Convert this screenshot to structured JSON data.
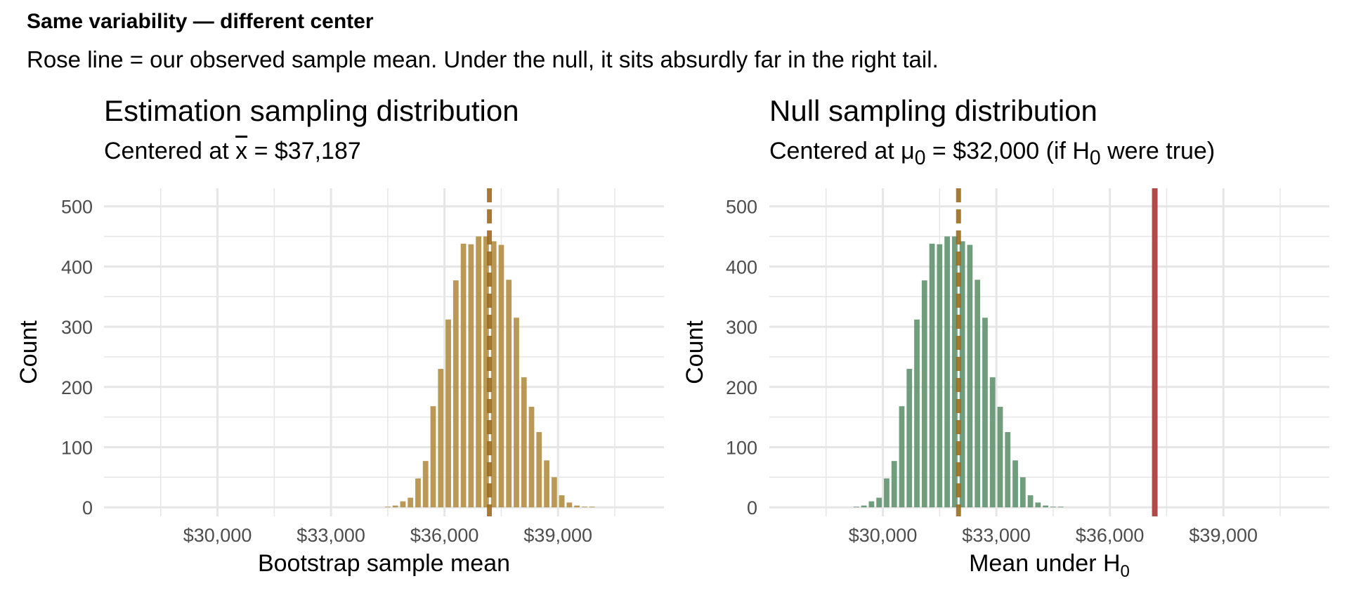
{
  "figure": {
    "title": "Same variability — different center",
    "subtitle": "Rose line = our observed sample mean. Under the null, it sits absurdly far in the right tail."
  },
  "colors": {
    "gold": "#b08a3e",
    "green": "#5c8f6a",
    "dashed_line": "#9a6b1f",
    "rose": "#b34a4a",
    "grid": "#e6e6e6"
  },
  "panels": [
    {
      "title": "Estimation sampling distribution",
      "subtitle_lead": "Centered at ",
      "subtitle_symbol": "x",
      "subtitle_rest": " = $37,187"
    },
    {
      "title": "Null sampling distribution",
      "subtitle_lead": "Centered at ",
      "subtitle_symbol": "μ",
      "subtitle_sub": "0",
      "subtitle_mid": " = $32,000 (if H",
      "subtitle_sub2": "0",
      "subtitle_rest": " were true)"
    }
  ],
  "chart_data": [
    {
      "type": "bar",
      "subtype": "histogram",
      "title": "Estimation sampling distribution",
      "xlabel": "Bootstrap sample mean",
      "ylabel": "Count",
      "xlim": [
        27000,
        41800
      ],
      "ylim": [
        -15,
        530
      ],
      "xticks": [
        30000,
        33000,
        36000,
        39000
      ],
      "xtick_labels": [
        "$30,000",
        "$33,000",
        "$36,000",
        "$39,000"
      ],
      "yticks": [
        0,
        100,
        200,
        300,
        400,
        500
      ],
      "bin_width": 200,
      "bin_centers": [
        34500,
        34700,
        34900,
        35100,
        35300,
        35500,
        35700,
        35900,
        36100,
        36300,
        36500,
        36700,
        36900,
        37100,
        37300,
        37500,
        37700,
        37900,
        38100,
        38300,
        38500,
        38700,
        38900,
        39100,
        39300,
        39500,
        39700,
        39900
      ],
      "counts": [
        1,
        3,
        10,
        16,
        48,
        77,
        168,
        230,
        312,
        377,
        438,
        437,
        450,
        450,
        442,
        436,
        378,
        315,
        216,
        167,
        125,
        78,
        50,
        20,
        8,
        3,
        1,
        1
      ],
      "color": "gold",
      "vlines": [
        {
          "x": 37187,
          "style": "dashed",
          "color": "dashed_line"
        }
      ],
      "grid": true
    },
    {
      "type": "bar",
      "subtype": "histogram",
      "title": "Null sampling distribution",
      "xlabel": "Mean under H0",
      "xlabel_lead": "Mean under ",
      "xlabel_h": "H",
      "xlabel_sub": "0",
      "ylabel": "Count",
      "xlim": [
        27000,
        41800
      ],
      "ylim": [
        -15,
        530
      ],
      "xticks": [
        30000,
        33000,
        36000,
        39000
      ],
      "xtick_labels": [
        "$30,000",
        "$33,000",
        "$36,000",
        "$39,000"
      ],
      "yticks": [
        0,
        100,
        200,
        300,
        400,
        500
      ],
      "bin_width": 200,
      "bin_centers": [
        29300,
        29500,
        29700,
        29900,
        30100,
        30300,
        30500,
        30700,
        30900,
        31100,
        31300,
        31500,
        31700,
        31900,
        32100,
        32300,
        32500,
        32700,
        32900,
        33100,
        33300,
        33500,
        33700,
        33900,
        34100,
        34300,
        34500,
        34700
      ],
      "counts": [
        1,
        3,
        10,
        16,
        48,
        77,
        168,
        230,
        312,
        377,
        438,
        437,
        450,
        450,
        442,
        436,
        378,
        315,
        216,
        167,
        125,
        78,
        50,
        20,
        8,
        3,
        1,
        1
      ],
      "color": "green",
      "vlines": [
        {
          "x": 32000,
          "style": "dashed",
          "color": "dashed_line"
        },
        {
          "x": 37187,
          "style": "solid",
          "color": "rose"
        }
      ],
      "grid": true
    }
  ]
}
